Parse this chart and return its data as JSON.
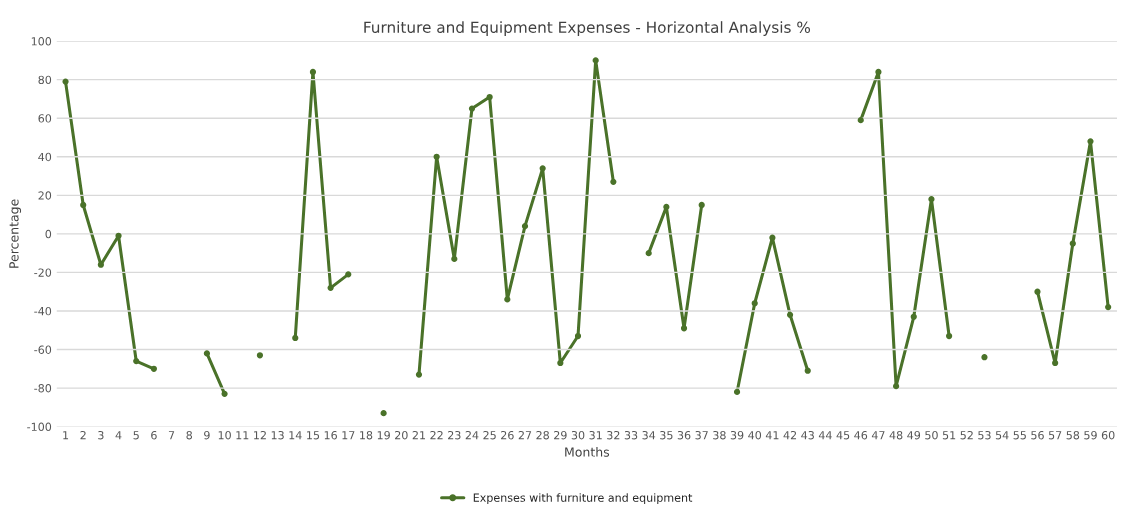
{
  "chart_data": {
    "type": "line",
    "title": "Furniture and Equipment Expenses - Horizontal Analysis %",
    "xlabel": "Months",
    "ylabel": "Percentage",
    "categories": [
      "1",
      "2",
      "3",
      "4",
      "5",
      "6",
      "7",
      "8",
      "9",
      "10",
      "11",
      "12",
      "13",
      "14",
      "15",
      "16",
      "17",
      "18",
      "19",
      "20",
      "21",
      "22",
      "23",
      "24",
      "25",
      "26",
      "27",
      "28",
      "29",
      "30",
      "31",
      "32",
      "33",
      "34",
      "35",
      "36",
      "37",
      "38",
      "39",
      "40",
      "41",
      "42",
      "43",
      "44",
      "45",
      "46",
      "47",
      "48",
      "49",
      "50",
      "51",
      "52",
      "53",
      "54",
      "55",
      "56",
      "57",
      "58",
      "59",
      "60"
    ],
    "series": [
      {
        "name": "Expenses with furniture and equipment",
        "color": "#4a7229",
        "values": [
          79,
          15,
          -16,
          -1,
          -66,
          -70,
          null,
          null,
          -62,
          -83,
          null,
          -63,
          null,
          -54,
          84,
          -28,
          -21,
          null,
          -93,
          null,
          -73,
          40,
          -13,
          65,
          71,
          -34,
          4,
          34,
          -67,
          -53,
          90,
          27,
          null,
          -10,
          14,
          -49,
          15,
          null,
          -82,
          -36,
          -2,
          -42,
          -71,
          null,
          null,
          59,
          84,
          -79,
          -43,
          18,
          -53,
          null,
          -64,
          null,
          null,
          -30,
          -67,
          -5,
          48,
          -38
        ]
      }
    ],
    "ylim": [
      -100,
      100
    ],
    "yticks": [
      -100,
      -80,
      -60,
      -40,
      -20,
      0,
      20,
      40,
      60,
      80,
      100
    ],
    "grid": "y",
    "legend": "bottom",
    "marker": "circle",
    "line_style": "solid"
  }
}
